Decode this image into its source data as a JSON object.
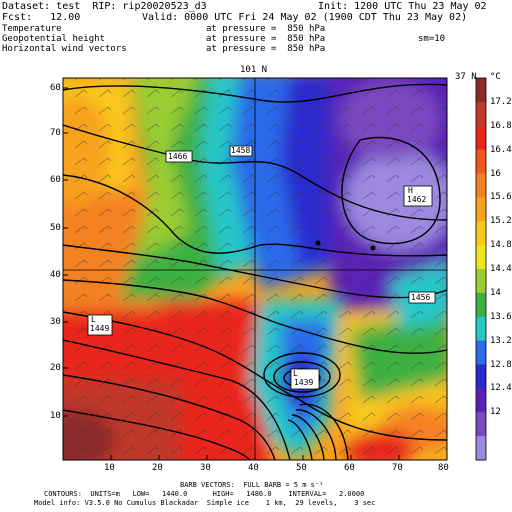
{
  "header": {
    "dataset": "Dataset: test  RIP: rip20020523_d3",
    "init": "Init: 1200 UTC Thu 23 May 02",
    "fcst": "Fcst:   12.00",
    "valid": "Valid: 0000 UTC Fri 24 May 02 (1900 CDT Thu 23 May 02)",
    "field1_name": "Temperature",
    "field1_level": "at pressure =  850 hPa",
    "field2_name": "Geopotential height",
    "field2_level": "at pressure =  850 hPa",
    "field2_extra": "sm=10",
    "field3_name": "Horizontal wind vectors",
    "field3_level": "at pressure =  850 hPa"
  },
  "plot": {
    "top_label": "101 N",
    "corner_label": "37 N",
    "x_ticks": [
      "10",
      "20",
      "30",
      "40",
      "50",
      "60",
      "70",
      "80"
    ],
    "y_ticks": [
      "60",
      "50",
      "40",
      "30",
      "20",
      "10"
    ],
    "y_ticks_upper": [
      "70"
    ],
    "contour_labels": {
      "a": "1466",
      "b": "1458",
      "c": "1456",
      "low_west_symbol": "L",
      "low_west_value": "1449",
      "low_south_symbol": "L",
      "low_south_value": "1439",
      "high_symbol": "H",
      "high_value": "1462"
    }
  },
  "colorbar": {
    "unit": "°C",
    "labels": [
      "17.2",
      "16.8",
      "16.4",
      "16",
      "15.6",
      "15.2",
      "14.8",
      "14.4",
      "14",
      "13.6",
      "13.2",
      "12.8",
      "12.4",
      "12"
    ],
    "colors": [
      "#8B2A2A",
      "#C0392B",
      "#E8251D",
      "#F0581F",
      "#F58220",
      "#F7A21C",
      "#F9C81A",
      "#E8E81A",
      "#9ACD32",
      "#3CB043",
      "#25C7C7",
      "#2A6BE8",
      "#2A2ACD",
      "#5A23B5",
      "#7A4AC0",
      "#9B8AE0"
    ]
  },
  "footer": {
    "line1": "BARB VECTORS:  FULL BARB = 5 m s⁻¹",
    "line2": "CONTOURS:  UNITS=m   LOW=   1440.0      HIGH=   1486.0    INTERVAL=   2.0000",
    "line3": "Model info: V3.5.0 No Cumulus Blackadar  Simple ice    1 km,  29 levels,    3 sec"
  }
}
